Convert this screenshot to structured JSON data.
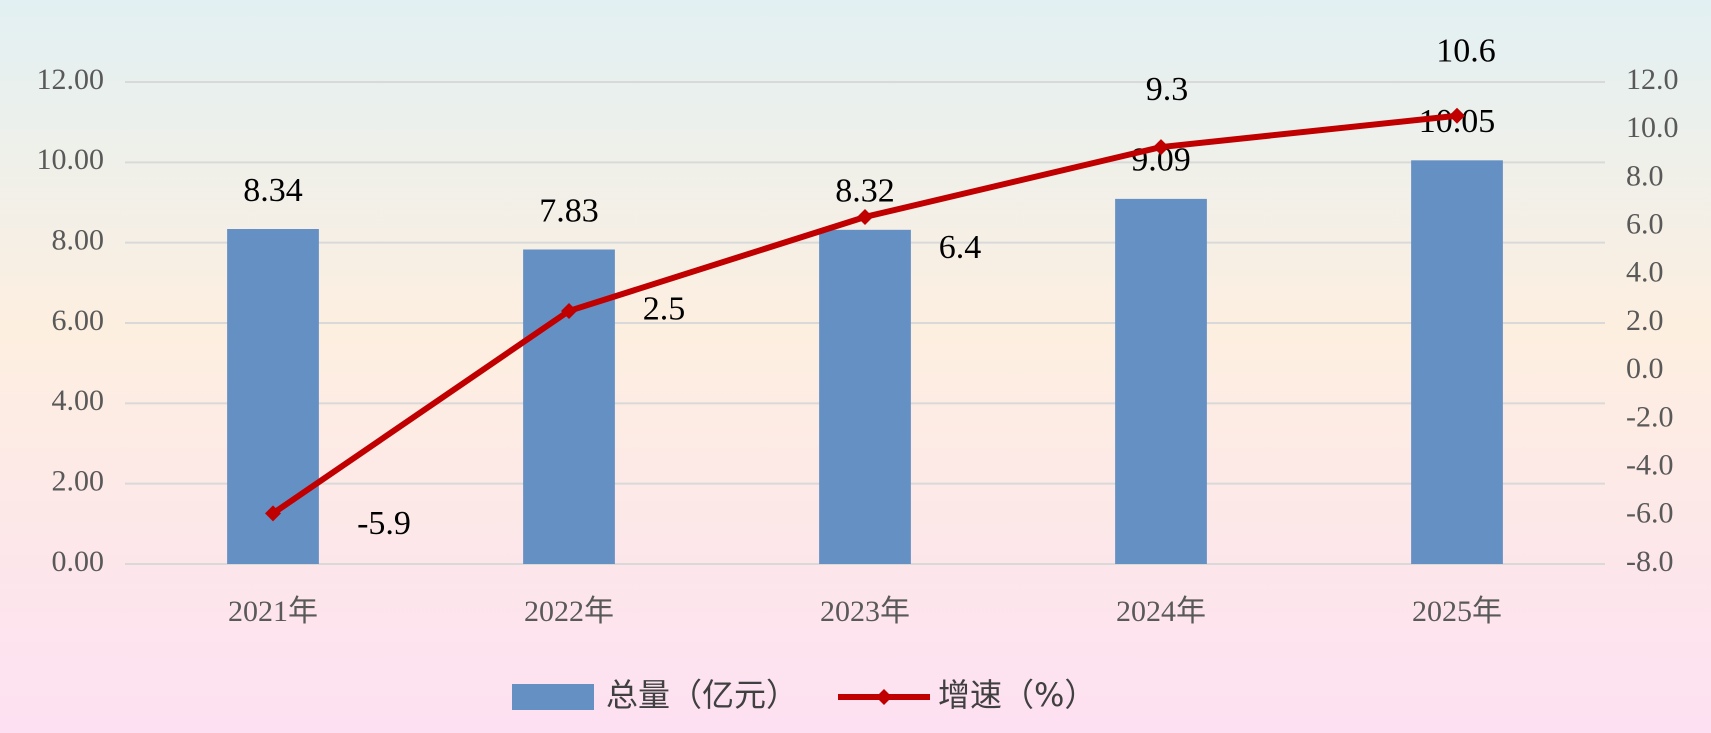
{
  "chart_data": {
    "type": "bar-line",
    "categories": [
      "2021年",
      "2022年",
      "2023年",
      "2024年",
      "2025年"
    ],
    "series": [
      {
        "name": "总量（亿元）",
        "type": "bar",
        "color": "#6590c4",
        "values": [
          8.34,
          7.83,
          8.32,
          9.09,
          10.05
        ]
      },
      {
        "name": "增速（%）",
        "type": "line",
        "axis": "y2",
        "color": "#c00000",
        "values": [
          -5.9,
          2.5,
          6.4,
          9.3,
          10.6
        ]
      }
    ],
    "ylim": [
      0,
      12
    ],
    "yticks": [
      {
        "value": 0,
        "label": "0.00"
      },
      {
        "value": 2,
        "label": "2.00"
      },
      {
        "value": 4,
        "label": "4.00"
      },
      {
        "value": 6,
        "label": "6.00"
      },
      {
        "value": 8,
        "label": "8.00"
      },
      {
        "value": 10,
        "label": "10.00"
      },
      {
        "value": 12,
        "label": "12.00"
      }
    ],
    "y2lim": [
      -8,
      12
    ],
    "y2ticks": [
      {
        "value": -8,
        "label": "-8.0"
      },
      {
        "value": -6,
        "label": "-6.0"
      },
      {
        "value": -4,
        "label": "-4.0"
      },
      {
        "value": -2,
        "label": "-2.0"
      },
      {
        "value": 0,
        "label": "0.0"
      },
      {
        "value": 2,
        "label": "2.0"
      },
      {
        "value": 4,
        "label": "4.0"
      },
      {
        "value": 6,
        "label": "6.0"
      },
      {
        "value": 8,
        "label": "8.0"
      },
      {
        "value": 10,
        "label": "10.0"
      },
      {
        "value": 12,
        "label": "12.0"
      }
    ],
    "grid": true,
    "legend": "bottom"
  }
}
